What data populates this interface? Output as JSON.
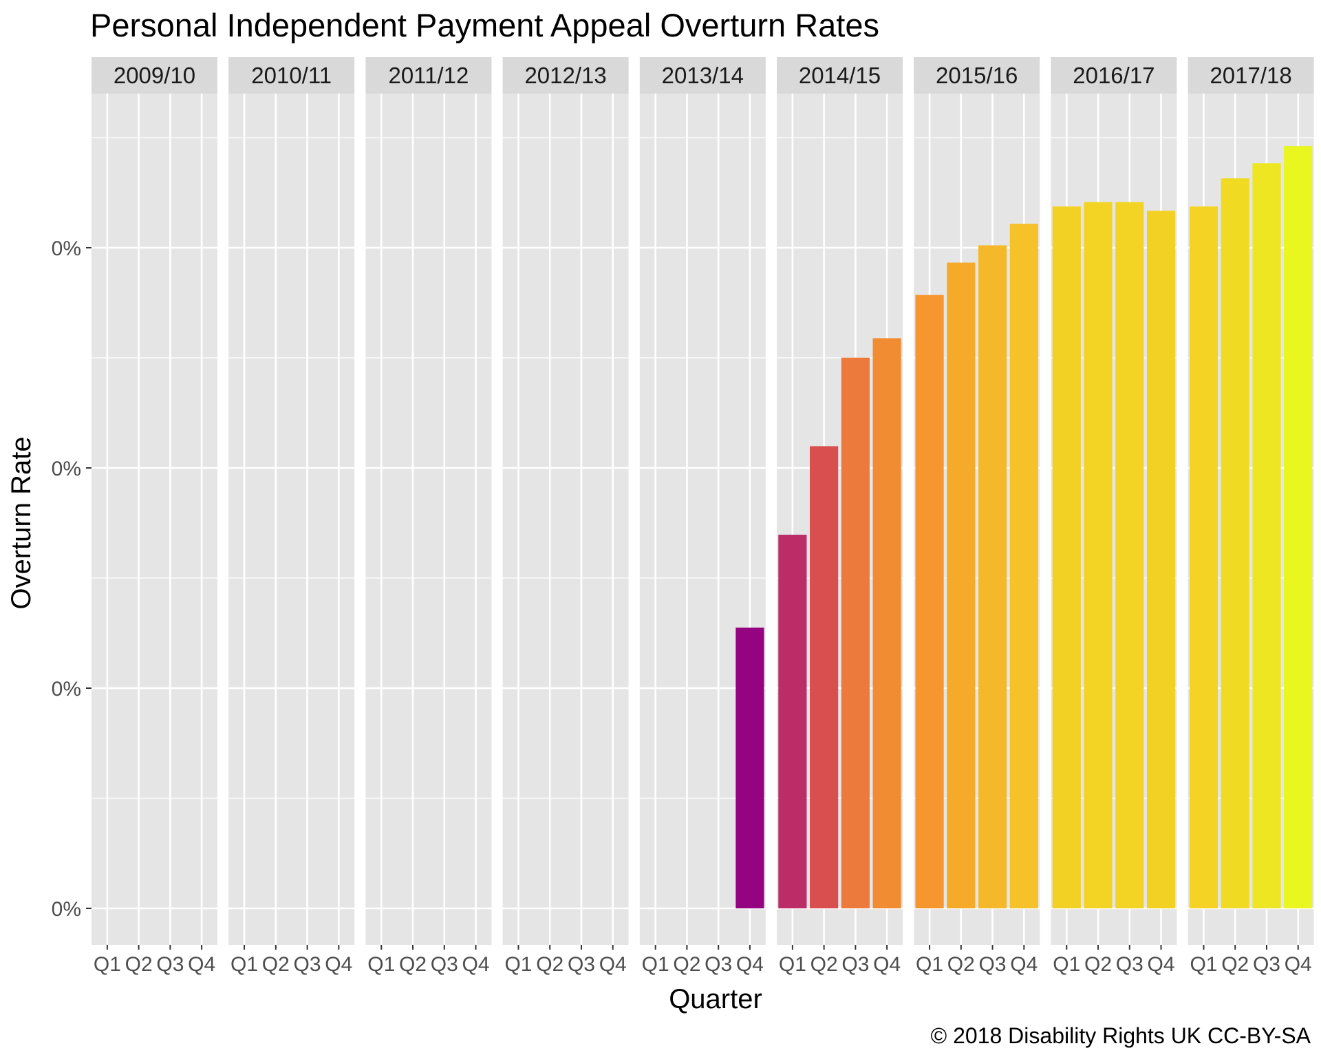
{
  "chart_data": {
    "type": "bar",
    "title": "Personal Independent Payment Appeal Overturn Rates",
    "xlabel": "Quarter",
    "ylabel": "Overturn Rate",
    "caption": "© 2018 Disability Rights UK CC-BY-SA",
    "ytick_labels": [
      "0%",
      "0%",
      "0%",
      "0%"
    ],
    "ylim": [
      0,
      0.0039
    ],
    "grid": true,
    "legend": "none",
    "categories": [
      "Q1",
      "Q2",
      "Q3",
      "Q4"
    ],
    "facets": [
      {
        "label": "2009/10",
        "values": [
          null,
          null,
          null,
          null
        ],
        "colors": [
          "",
          "",
          "",
          ""
        ]
      },
      {
        "label": "2010/11",
        "values": [
          null,
          null,
          null,
          null
        ],
        "colors": [
          "",
          "",
          "",
          ""
        ]
      },
      {
        "label": "2011/12",
        "values": [
          null,
          null,
          null,
          null
        ],
        "colors": [
          "",
          "",
          "",
          ""
        ]
      },
      {
        "label": "2012/13",
        "values": [
          null,
          null,
          null,
          null
        ],
        "colors": [
          "",
          "",
          "",
          ""
        ]
      },
      {
        "label": "2013/14",
        "values": [
          null,
          null,
          null,
          0.0013
        ],
        "colors": [
          "",
          "",
          "",
          "#940480"
        ]
      },
      {
        "label": "2014/15",
        "values": [
          0.00173,
          0.00214,
          0.00255,
          0.00264
        ],
        "colors": [
          "#ba2d66",
          "#d94f4f",
          "#ec7a3d",
          "#f28c33"
        ]
      },
      {
        "label": "2015/16",
        "values": [
          0.00284,
          0.00299,
          0.00307,
          0.00317
        ],
        "colors": [
          "#f7962e",
          "#f6aa2a",
          "#f5b82a",
          "#f5c22a"
        ]
      },
      {
        "label": "2016/17",
        "values": [
          0.00325,
          0.00327,
          0.00327,
          0.00323
        ],
        "colors": [
          "#f3d124",
          "#f3d424",
          "#f3d424",
          "#f3d124"
        ]
      },
      {
        "label": "2017/18",
        "values": [
          0.00325,
          0.00338,
          0.00345,
          0.00353
        ],
        "colors": [
          "#f4d324",
          "#f1db22",
          "#eee622",
          "#e9f61f"
        ]
      }
    ]
  },
  "colors": {
    "panel_bg": "#e5e5e5",
    "strip_bg": "#d9d9d9",
    "grid": "#ffffff"
  }
}
